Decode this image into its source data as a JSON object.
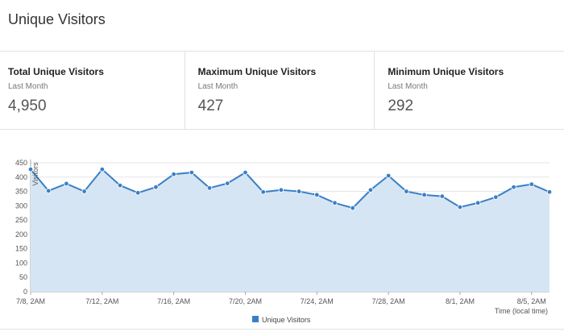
{
  "page": {
    "title": "Unique Visitors"
  },
  "stats": [
    {
      "title": "Total Unique Visitors",
      "period": "Last Month",
      "value": "4,950"
    },
    {
      "title": "Maximum Unique Visitors",
      "period": "Last Month",
      "value": "427"
    },
    {
      "title": "Minimum Unique Visitors",
      "period": "Last Month",
      "value": "292"
    }
  ],
  "colors": {
    "line": "#3a7fc4",
    "area": "#d6e5f4",
    "grid": "#e5e5e5"
  },
  "chart_data": {
    "type": "area",
    "title": "",
    "xlabel": "Time (local time)",
    "ylabel": "Visitors",
    "ylim": [
      0,
      450
    ],
    "y_ticks": [
      0,
      50,
      100,
      150,
      200,
      250,
      300,
      350,
      400,
      450
    ],
    "x_tick_labels": [
      "7/8, 2AM",
      "7/12, 2AM",
      "7/16, 2AM",
      "7/20, 2AM",
      "7/24, 2AM",
      "7/28, 2AM",
      "8/1, 2AM",
      "8/5, 2AM"
    ],
    "legend": {
      "position": "bottom-center"
    },
    "grid": true,
    "categories": [
      "7/8, 2AM",
      "7/9, 2AM",
      "7/10, 2AM",
      "7/11, 2AM",
      "7/12, 2AM",
      "7/13, 2AM",
      "7/14, 2AM",
      "7/15, 2AM",
      "7/16, 2AM",
      "7/17, 2AM",
      "7/18, 2AM",
      "7/19, 2AM",
      "7/20, 2AM",
      "7/21, 2AM",
      "7/22, 2AM",
      "7/23, 2AM",
      "7/24, 2AM",
      "7/25, 2AM",
      "7/26, 2AM",
      "7/27, 2AM",
      "7/28, 2AM",
      "7/29, 2AM",
      "7/30, 2AM",
      "7/31, 2AM",
      "8/1, 2AM",
      "8/2, 2AM",
      "8/3, 2AM",
      "8/4, 2AM",
      "8/5, 2AM",
      "8/6, 2AM"
    ],
    "series": [
      {
        "name": "Unique Visitors",
        "values": [
          427,
          352,
          377,
          350,
          427,
          371,
          345,
          365,
          410,
          416,
          362,
          378,
          416,
          348,
          355,
          350,
          338,
          310,
          292,
          355,
          405,
          350,
          338,
          333,
          295,
          310,
          330,
          365,
          375,
          348
        ]
      }
    ]
  }
}
